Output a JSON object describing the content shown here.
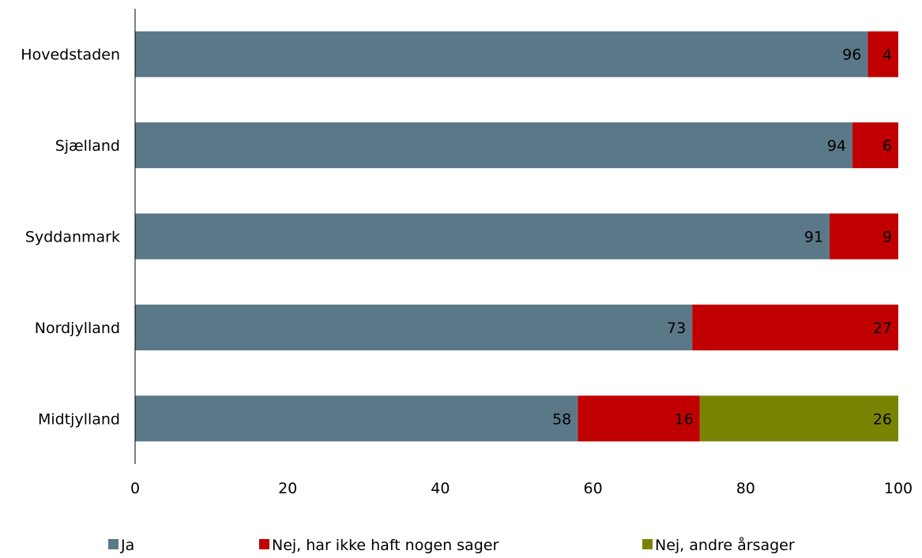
{
  "chart_data": {
    "type": "bar",
    "orientation": "horizontal",
    "stacked": true,
    "categories": [
      "Hovedstaden",
      "Sjælland",
      "Syddanmark",
      "Nordjylland",
      "Midtjylland"
    ],
    "series": [
      {
        "name": "Ja",
        "color": "#5B7889",
        "values": [
          96,
          94,
          91,
          73,
          58
        ]
      },
      {
        "name": "Nej, har ikke haft nogen sager",
        "color": "#C00000",
        "values": [
          4,
          6,
          9,
          27,
          16
        ]
      },
      {
        "name": "Nej, andre årsager",
        "color": "#7A8404",
        "values": [
          0,
          0,
          0,
          0,
          26
        ]
      }
    ],
    "xlim": [
      0,
      100
    ],
    "xticks": [
      "0",
      "20",
      "40",
      "60",
      "80",
      "100"
    ],
    "grid": false,
    "legend_position": "bottom"
  }
}
